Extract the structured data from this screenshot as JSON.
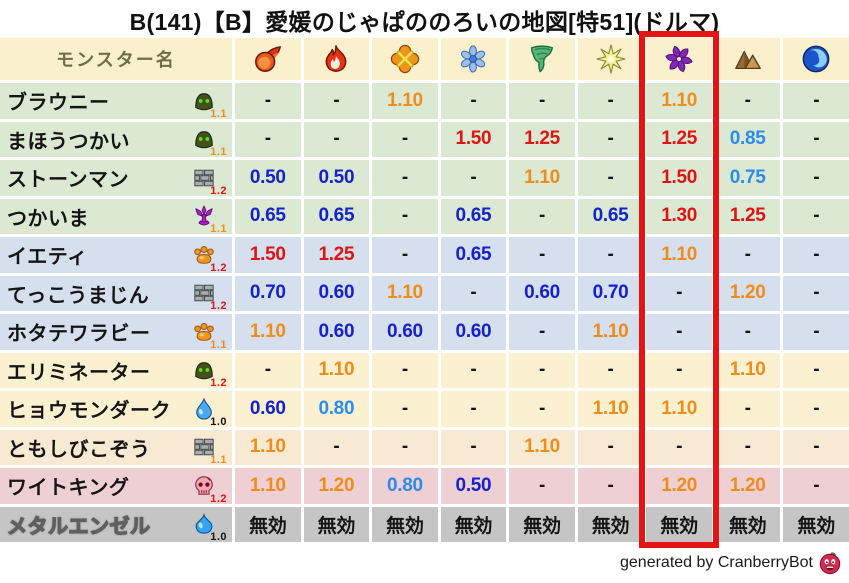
{
  "title": "B(141)【B】愛媛のじゃぱののろいの地図[特51](ドルマ)",
  "footer": {
    "credit": "generated by CranberryBot",
    "icon": "cranberry-icon"
  },
  "palette": {
    "header_bg": "#faf0cc",
    "header_text": "#6e6e46",
    "band_green": "#dbe9d3",
    "band_blue": "#d5dfed",
    "band_cream": "#fbf0d0",
    "band_cream2": "#f8e9d3",
    "band_pink": "#eecfd4",
    "band_gray": "#c5c5c5",
    "value_neutral": "#141414",
    "value_strong_resist": "#1522cc",
    "value_resist": "#2b8cec",
    "value_weak": "#f08c1a",
    "value_strong_weak": "#e01414",
    "highlight_box": "#e41414"
  },
  "chart_data": {
    "type": "table",
    "title": "B(141)【B】愛媛のじゃぱののろいの地図[特51](ドルマ)",
    "name_header": "モンスター名",
    "highlighted_column_index": 6,
    "columns": [
      {
        "icon": "fireball-icon",
        "highlighted": false
      },
      {
        "icon": "flame-icon",
        "highlighted": false
      },
      {
        "icon": "burst-icon",
        "highlighted": false
      },
      {
        "icon": "snowflake-icon",
        "highlighted": false
      },
      {
        "icon": "tornado-icon",
        "highlighted": false
      },
      {
        "icon": "spark-icon",
        "highlighted": false
      },
      {
        "icon": "pinwheel-icon",
        "highlighted": true
      },
      {
        "icon": "mountain-icon",
        "highlighted": false
      },
      {
        "icon": "wave-icon",
        "highlighted": false
      }
    ],
    "rows": [
      {
        "name": "ブラウニー",
        "icon": "hood-icon",
        "sub": "1.1",
        "band": "green",
        "values": [
          "-",
          "-",
          "1.10",
          "-",
          "-",
          "-",
          "1.10",
          "-",
          "-"
        ]
      },
      {
        "name": "まほうつかい",
        "icon": "hood-icon",
        "sub": "1.1",
        "band": "green",
        "values": [
          "-",
          "-",
          "-",
          "1.50",
          "1.25",
          "-",
          "1.25",
          "0.85",
          "-"
        ]
      },
      {
        "name": "ストーンマン",
        "icon": "brick-icon",
        "sub": "1.2",
        "band": "green",
        "values": [
          "0.50",
          "0.50",
          "-",
          "-",
          "1.10",
          "-",
          "1.50",
          "0.75",
          "-"
        ]
      },
      {
        "name": "つかいま",
        "icon": "trident-icon",
        "sub": "1.1",
        "band": "green",
        "values": [
          "0.65",
          "0.65",
          "-",
          "0.65",
          "-",
          "0.65",
          "1.30",
          "1.25",
          "-"
        ]
      },
      {
        "name": "イエティ",
        "icon": "paw-icon",
        "sub": "1.2",
        "band": "blue",
        "values": [
          "1.50",
          "1.25",
          "-",
          "0.65",
          "-",
          "-",
          "1.10",
          "-",
          "-"
        ]
      },
      {
        "name": "てっこうまじん",
        "icon": "brick-icon",
        "sub": "1.2",
        "band": "blue",
        "values": [
          "0.70",
          "0.60",
          "1.10",
          "-",
          "0.60",
          "0.70",
          "-",
          "1.20",
          "-"
        ]
      },
      {
        "name": "ホタテワラビー",
        "icon": "paw-icon",
        "sub": "1.1",
        "band": "blue",
        "values": [
          "1.10",
          "0.60",
          "0.60",
          "0.60",
          "-",
          "1.10",
          "-",
          "-",
          "-"
        ]
      },
      {
        "name": "エリミネーター",
        "icon": "hood-icon",
        "sub": "1.2",
        "band": "cream",
        "values": [
          "-",
          "1.10",
          "-",
          "-",
          "-",
          "-",
          "-",
          "1.10",
          "-"
        ]
      },
      {
        "name": "ヒョウモンダーク",
        "icon": "drop-icon",
        "sub": "1.0",
        "band": "cream",
        "values": [
          "0.60",
          "0.80",
          "-",
          "-",
          "-",
          "1.10",
          "1.10",
          "-",
          "-"
        ]
      },
      {
        "name": "ともしびこぞう",
        "icon": "brick-icon",
        "sub": "1.1",
        "band": "cream2",
        "values": [
          "1.10",
          "-",
          "-",
          "-",
          "1.10",
          "-",
          "-",
          "-",
          "-"
        ]
      },
      {
        "name": "ワイトキング",
        "icon": "skull-icon",
        "sub": "1.2",
        "band": "pink",
        "values": [
          "1.10",
          "1.20",
          "0.80",
          "0.50",
          "-",
          "-",
          "1.20",
          "1.20",
          "-"
        ]
      },
      {
        "name": "メタルエンゼル",
        "icon": "slime-icon",
        "sub": "1.0",
        "band": "gray",
        "values": [
          "無効",
          "無効",
          "無効",
          "無効",
          "無効",
          "無効",
          "無効",
          "無効",
          "無効"
        ]
      }
    ]
  }
}
